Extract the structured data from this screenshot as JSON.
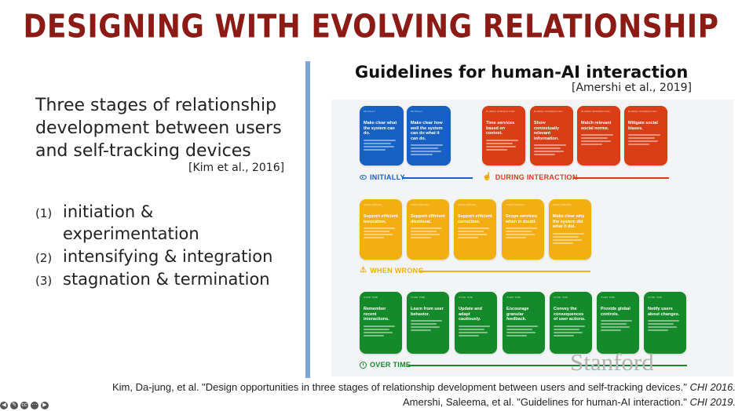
{
  "title": "DESIGNING WITH EVOLVING RELATIONSHIP",
  "left": {
    "intro": "Three stages of relationship development between users and self-tracking devices",
    "citation": "[Kim et al., 2016]",
    "stages": [
      {
        "num": "(1)",
        "text": "initiation & experimentation"
      },
      {
        "num": "(2)",
        "text": "intensifying & integration"
      },
      {
        "num": "(3)",
        "text": "stagnation & termination"
      }
    ]
  },
  "figure": {
    "title": "Guidelines for human-AI interaction",
    "citation": "[Amershi et al., 2019]",
    "sections": {
      "initially": "INITIALLY",
      "during": "DURING INTERACTION",
      "when_wrong": "WHEN WRONG",
      "over_time": "OVER TIME"
    },
    "initially_cards": [
      {
        "tag": "Initially",
        "head": "Make clear what the system can do."
      },
      {
        "tag": "Initially",
        "head": "Make clear how well the system can do what it can do."
      }
    ],
    "during_cards": [
      {
        "tag": "During interaction",
        "head": "Time services based on context."
      },
      {
        "tag": "During interaction",
        "head": "Show contextually relevant information."
      },
      {
        "tag": "During interaction",
        "head": "Match relevant social norms."
      },
      {
        "tag": "During interaction",
        "head": "Mitigate social biases."
      }
    ],
    "wrong_cards": [
      {
        "tag": "When wrong",
        "head": "Support efficient invocation."
      },
      {
        "tag": "When wrong",
        "head": "Support efficient dismissal."
      },
      {
        "tag": "When wrong",
        "head": "Support efficient correction."
      },
      {
        "tag": "When wrong",
        "head": "Scope services when in doubt."
      },
      {
        "tag": "When wrong",
        "head": "Make clear why the system did what it did."
      }
    ],
    "overtime_cards": [
      {
        "tag": "Over time",
        "head": "Remember recent interactions."
      },
      {
        "tag": "Over time",
        "head": "Learn from user behavior."
      },
      {
        "tag": "Over time",
        "head": "Update and adapt cautiously."
      },
      {
        "tag": "Over time",
        "head": "Encourage granular feedback."
      },
      {
        "tag": "Over time",
        "head": "Convey the consequences of user actions."
      },
      {
        "tag": "Over time",
        "head": "Provide global controls."
      },
      {
        "tag": "Over time",
        "head": "Notify users about changes."
      }
    ],
    "colors": {
      "initially": "#1761c4",
      "during": "#d93e16",
      "when_wrong": "#f3ae12",
      "over_time": "#158a2a"
    }
  },
  "watermark": "Stanford",
  "references": [
    {
      "text": "Kim, Da-jung, et al. \"Design opportunities in three stages of relationship development between users and self-tracking devices.\" ",
      "venue": "CHI 2016."
    },
    {
      "text": "Amershi, Saleema, et al. \"Guidelines for human-AI interaction.\" ",
      "venue": "CHI 2019."
    }
  ],
  "player_controls": [
    {
      "name": "prev-icon",
      "glyph": "◀"
    },
    {
      "name": "pen-icon",
      "glyph": "✎"
    },
    {
      "name": "captions-icon",
      "glyph": "cc"
    },
    {
      "name": "more-icon",
      "glyph": "⋯"
    },
    {
      "name": "next-icon",
      "glyph": "▶"
    }
  ]
}
